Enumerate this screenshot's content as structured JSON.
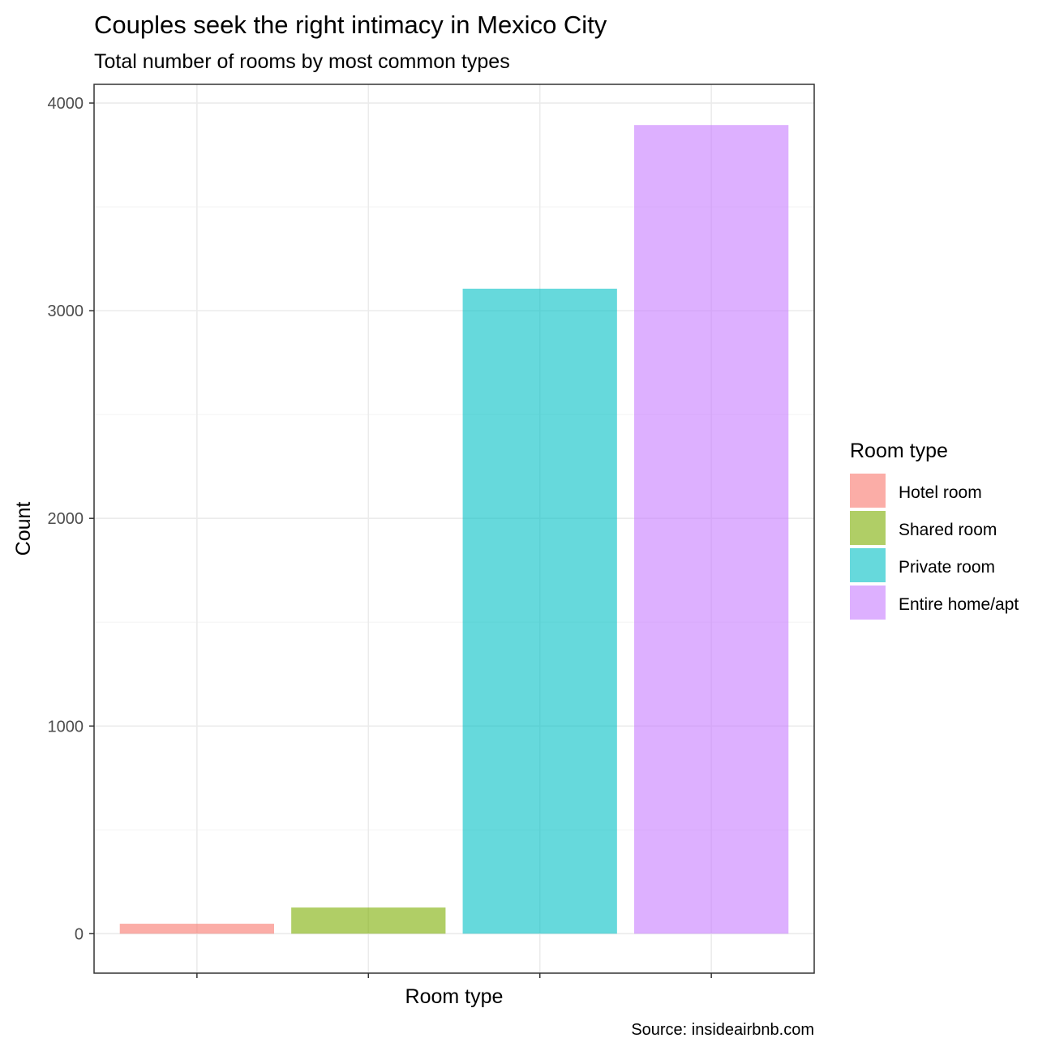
{
  "chart_data": {
    "type": "bar",
    "title": "Couples seek the right intimacy in Mexico City",
    "subtitle": "Total number of rooms by most common types",
    "xlabel": "Room type",
    "ylabel": "Count",
    "caption": "Source: insideairbnb.com",
    "categories": [
      "Hotel room",
      "Shared room",
      "Private room",
      "Entire home/apt"
    ],
    "values": [
      48,
      126,
      3106,
      3894
    ],
    "colors": [
      "#f8766d",
      "#7cae00",
      "#00bfc4",
      "#c77cff"
    ],
    "bar_opacity": 0.6,
    "ylim": [
      -190,
      4090
    ],
    "yticks": [
      0,
      1000,
      2000,
      3000,
      4000
    ],
    "yminor": [
      500,
      1500,
      2500,
      3500
    ],
    "x_tick_labels_shown": false,
    "grid": true,
    "legend": {
      "title": "Room type",
      "position": "right",
      "entries": [
        "Hotel room",
        "Shared room",
        "Private room",
        "Entire home/apt"
      ]
    }
  }
}
